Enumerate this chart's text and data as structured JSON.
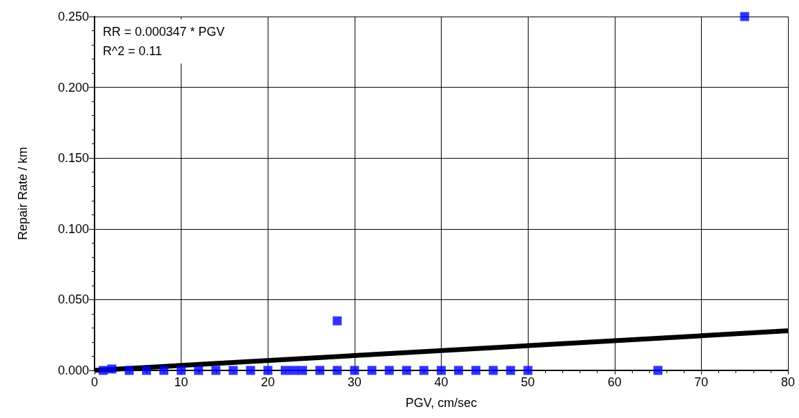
{
  "chart_data": {
    "type": "scatter",
    "xlabel": "PGV, cm/sec",
    "ylabel": "Repair Rate / km",
    "annotations": [
      "RR = 0.000347 * PGV",
      "R^2 = 0.11"
    ],
    "xlim": [
      0,
      80
    ],
    "xticks": [
      0,
      10,
      20,
      30,
      40,
      50,
      60,
      70,
      80
    ],
    "ylim": [
      0,
      0.25
    ],
    "yticks": [
      {
        "value": 0,
        "label": "0.000"
      },
      {
        "value": 0.05,
        "label": "0.050"
      },
      {
        "value": 0.1,
        "label": "0.100"
      },
      {
        "value": 0.15,
        "label": "0.150"
      },
      {
        "value": 0.2,
        "label": "0.200"
      },
      {
        "value": 0.25,
        "label": "0.250"
      }
    ],
    "grid": true,
    "marker": "square",
    "series": [
      {
        "type": "scatter",
        "color": "#0000ff",
        "x": [
          1,
          2,
          4,
          6,
          8,
          10,
          12,
          14,
          16,
          18,
          20,
          22,
          23,
          24,
          26,
          28,
          28,
          30,
          32,
          34,
          36,
          38,
          40,
          42,
          44,
          46,
          48,
          50,
          65,
          75
        ],
        "values": [
          0,
          0.001,
          0,
          0,
          0,
          0,
          0,
          0,
          0,
          0,
          0,
          0,
          0,
          0,
          0,
          0,
          0.035,
          0,
          0,
          0,
          0,
          0,
          0,
          0,
          0,
          0,
          0,
          0,
          0,
          0.25
        ]
      },
      {
        "type": "line",
        "color": "#000000",
        "marker": "none",
        "x": [
          0,
          80
        ],
        "values": [
          0,
          0.028
        ]
      }
    ]
  }
}
